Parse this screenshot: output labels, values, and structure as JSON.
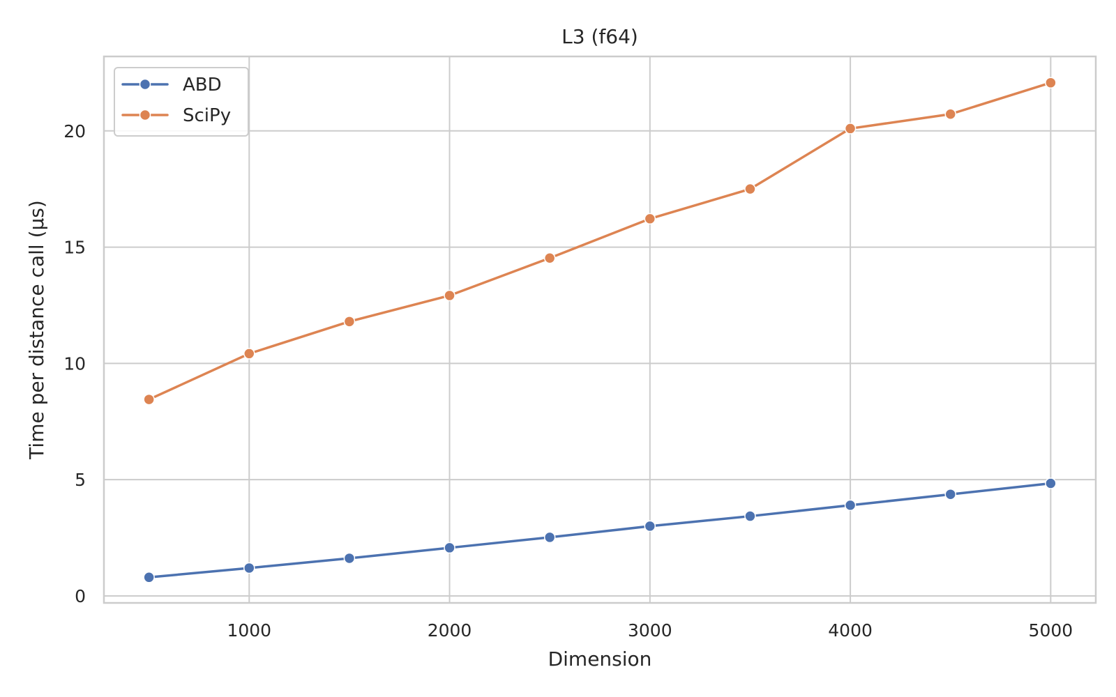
{
  "chart_data": {
    "type": "line",
    "title": "L3 (f64)",
    "xlabel": "Dimension",
    "ylabel": "Time per distance call (µs)",
    "x": [
      500,
      1000,
      1500,
      2000,
      2500,
      3000,
      3500,
      4000,
      4500,
      5000
    ],
    "xlim": [
      275,
      5225
    ],
    "ylim": [
      -0.3,
      23.2
    ],
    "xticks": [
      1000,
      2000,
      3000,
      4000,
      5000
    ],
    "yticks": [
      0,
      5,
      10,
      15,
      20
    ],
    "grid": true,
    "legend_position": "top-left",
    "series": [
      {
        "name": "ABD",
        "color": "#4c72b0",
        "values": [
          0.8,
          1.2,
          1.62,
          2.07,
          2.52,
          3.0,
          3.43,
          3.9,
          4.37,
          4.84
        ]
      },
      {
        "name": "SciPy",
        "color": "#dd8452",
        "values": [
          8.45,
          10.42,
          11.8,
          12.92,
          14.53,
          16.22,
          17.5,
          20.1,
          20.72,
          22.07
        ]
      }
    ]
  }
}
